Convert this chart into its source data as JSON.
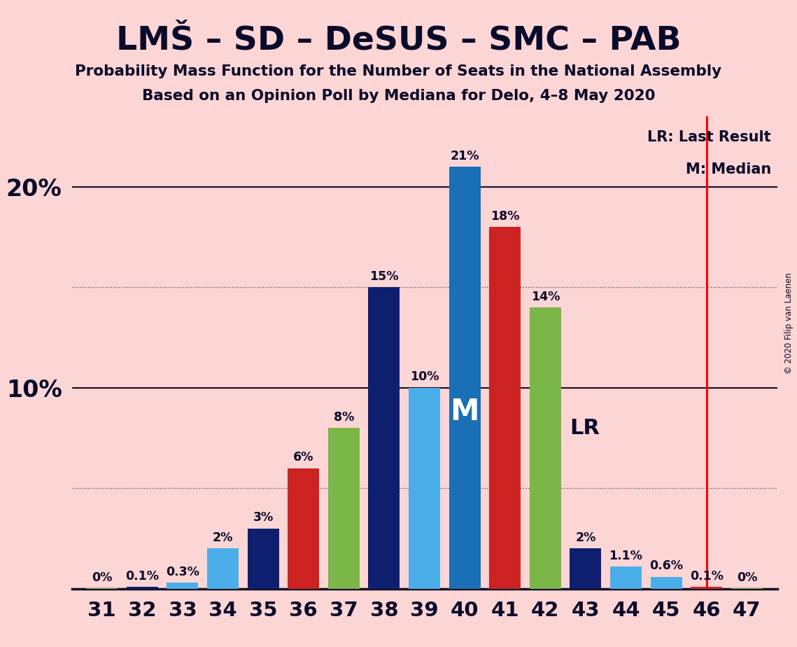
{
  "title": "LMŠ – SD – DeSUS – SMC – PAB",
  "subtitle1": "Probability Mass Function for the Number of Seats in the National Assembly",
  "subtitle2": "Based on an Opinion Poll by Mediana for Delo, 4–8 May 2020",
  "copyright": "© 2020 Filip van Laenen",
  "seats": [
    31,
    32,
    33,
    34,
    35,
    36,
    37,
    38,
    39,
    40,
    41,
    42,
    43,
    44,
    45,
    46,
    47
  ],
  "values": [
    0.02,
    0.1,
    0.3,
    2.0,
    3.0,
    6.0,
    8.0,
    15.0,
    10.0,
    21.0,
    18.0,
    14.0,
    2.0,
    1.1,
    0.6,
    0.1,
    0.02
  ],
  "labels": [
    "0%",
    "0.1%",
    "0.3%",
    "2%",
    "3%",
    "6%",
    "8%",
    "15%",
    "10%",
    "21%",
    "18%",
    "14%",
    "2%",
    "1.1%",
    "0.6%",
    "0.1%",
    "0%"
  ],
  "colors": [
    "#7ab648",
    "#0d1f6e",
    "#4baee8",
    "#4baee8",
    "#0d1f6e",
    "#cc2222",
    "#7ab648",
    "#0d1f6e",
    "#4baee8",
    "#1a6fb5",
    "#cc2222",
    "#7ab648",
    "#0d1f6e",
    "#4baee8",
    "#4baee8",
    "#cc2222",
    "#7ab648"
  ],
  "background_color": "#fcd5d5",
  "median_seat": 40,
  "lr_seat": 46,
  "lr_label": "LR",
  "median_label": "M",
  "ymax": 23.5,
  "dotted_lines": [
    5.0,
    15.0
  ],
  "solid_lines": [
    10.0,
    20.0
  ],
  "legend_lr": "LR: Last Result",
  "legend_m": "M: Median"
}
